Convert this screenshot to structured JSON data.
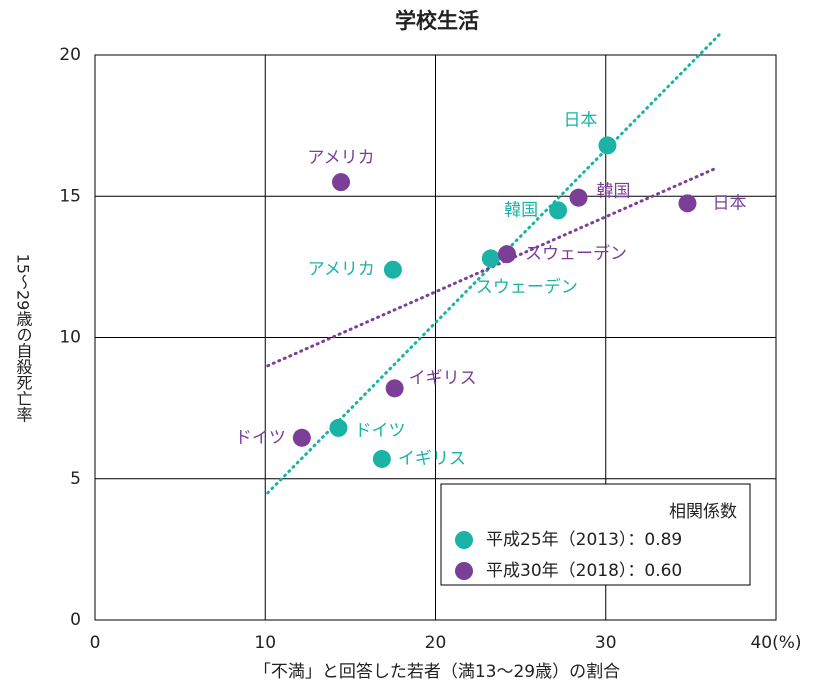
{
  "chart_data": {
    "type": "scatter",
    "title": "学校生活",
    "x_label": "「不満」と回答した若者（満13〜29歳）の割合",
    "y_label": "15〜29歳の自殺死亡率",
    "xlim": [
      0,
      40
    ],
    "ylim": [
      0,
      20
    ],
    "xticks": [
      0,
      10,
      20,
      30,
      {
        "value": 40,
        "label": "40(%)"
      }
    ],
    "yticks": [
      0,
      5,
      10,
      15,
      20
    ],
    "grid": true,
    "legend_title": "相関係数",
    "series": [
      {
        "name": "平成25年（2013）：0.89",
        "color": "#1ab3a6",
        "labels": [
          "日本",
          "韓国",
          "スウェーデン",
          "アメリカ",
          "ドイツ",
          "イギリス"
        ],
        "x": [
          30.1,
          27.2,
          23.25,
          17.5,
          14.3,
          16.85
        ],
        "values": [
          16.8,
          14.5,
          12.8,
          12.4,
          6.8,
          5.7
        ],
        "trendline": {
          "x": [
            10.15,
            36.8
          ],
          "y": [
            4.5,
            20.8
          ]
        }
      },
      {
        "name": "平成30年（2018）：0.60",
        "color": "#7b3f98",
        "labels": [
          "アメリカ",
          "韓国",
          "日本",
          "スウェーデン",
          "イギリス",
          "ドイツ"
        ],
        "x": [
          14.45,
          28.4,
          34.8,
          24.2,
          17.6,
          12.15
        ],
        "values": [
          15.5,
          14.95,
          14.75,
          12.95,
          8.2,
          6.45
        ],
        "trendline": {
          "x": [
            10.15,
            36.5
          ],
          "y": [
            9.0,
            16.0
          ]
        }
      }
    ]
  }
}
